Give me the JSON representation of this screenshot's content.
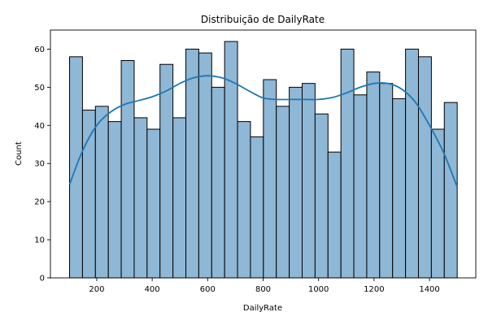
{
  "chart_data": {
    "type": "bar",
    "title": "Distribuição de DailyRate",
    "xlabel": "DailyRate",
    "ylabel": "Count",
    "xlim": [
      33,
      1567
    ],
    "ylim": [
      0,
      65
    ],
    "xticks": [
      200,
      400,
      600,
      800,
      1000,
      1200,
      1400
    ],
    "yticks": [
      0,
      10,
      20,
      30,
      40,
      50,
      60
    ],
    "bin_start": 102,
    "bin_width": 46.6,
    "values": [
      58,
      44,
      45,
      41,
      57,
      42,
      39,
      56,
      42,
      60,
      59,
      50,
      62,
      41,
      37,
      52,
      45,
      50,
      51,
      43,
      33,
      60,
      48,
      54,
      51,
      47,
      60,
      58,
      39,
      46
    ],
    "kde": {
      "x": [
        102,
        150,
        200,
        250,
        300,
        350,
        400,
        450,
        500,
        550,
        600,
        650,
        700,
        750,
        800,
        850,
        900,
        950,
        1000,
        1050,
        1100,
        1150,
        1200,
        1250,
        1300,
        1350,
        1400,
        1450,
        1499
      ],
      "y": [
        24.5,
        33.5,
        40,
        43.5,
        45.5,
        46.5,
        47.5,
        49,
        51,
        52.5,
        53,
        52.5,
        51,
        49,
        47.2,
        46.8,
        46.8,
        46.8,
        46.8,
        47.3,
        48.5,
        50,
        51,
        51,
        49.5,
        46,
        40,
        33,
        24
      ]
    },
    "grid": false,
    "bar_color": "#8fb7d6",
    "bar_edge": "#000000",
    "kde_color": "#1f77b4"
  }
}
